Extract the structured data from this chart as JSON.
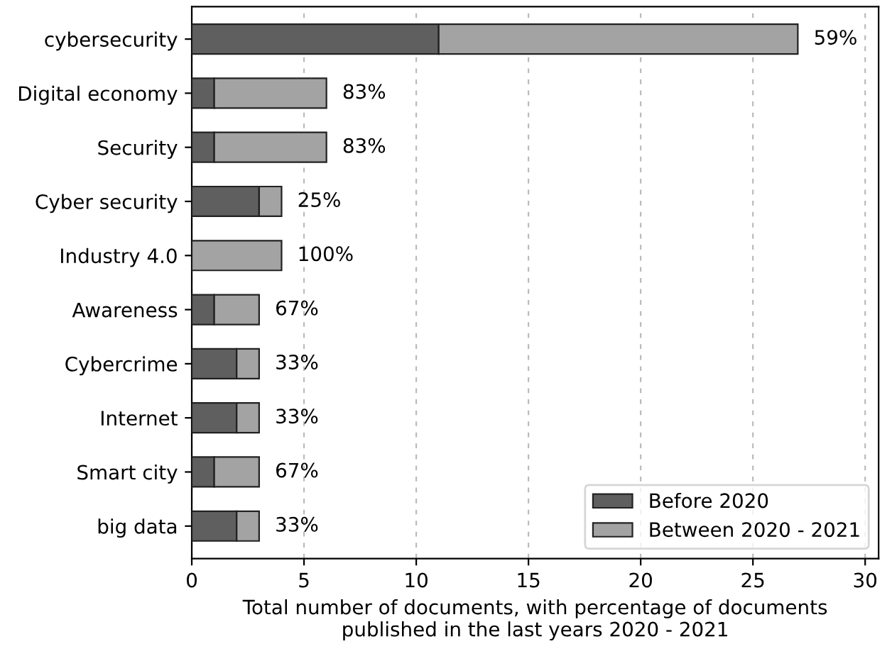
{
  "chart_data": {
    "type": "bar",
    "orientation": "horizontal",
    "stacked": true,
    "categories": [
      "cybersecurity",
      "Digital economy",
      "Security",
      "Cyber security",
      "Industry 4.0",
      "Awareness",
      "Cybercrime",
      "Internet",
      "Smart city",
      "big data"
    ],
    "series": [
      {
        "name": "Before 2020",
        "color": "#5f5f5f",
        "values": [
          11,
          1,
          1,
          3,
          0,
          1,
          2,
          2,
          1,
          2
        ]
      },
      {
        "name": "Between 2020 - 2021",
        "color": "#a3a3a3",
        "values": [
          16,
          5,
          5,
          1,
          4,
          2,
          1,
          1,
          2,
          1
        ]
      }
    ],
    "annotations": [
      {
        "text": "59%",
        "x": 27,
        "y": "cybersecurity"
      },
      {
        "text": "83%",
        "x": 6,
        "y": "Digital economy"
      },
      {
        "text": "83%",
        "x": 6,
        "y": "Security"
      },
      {
        "text": "25%",
        "x": 4,
        "y": "Cyber security"
      },
      {
        "text": "100%",
        "x": 4,
        "y": "Industry 4.0"
      },
      {
        "text": "67%",
        "x": 3,
        "y": "Awareness"
      },
      {
        "text": "33%",
        "x": 3,
        "y": "Cybercrime"
      },
      {
        "text": "33%",
        "x": 3,
        "y": "Internet"
      },
      {
        "text": "67%",
        "x": 3,
        "y": "Smart city"
      },
      {
        "text": "33%",
        "x": 3,
        "y": "big data"
      }
    ],
    "xlabel": "Total number of documents, with percentage of documents\npublished in the last years 2020 - 2021",
    "xlim": [
      0,
      30.6
    ],
    "xticks": [
      0,
      5,
      10,
      15,
      20,
      25,
      30
    ],
    "grid": "x",
    "legend": "bottom right"
  }
}
